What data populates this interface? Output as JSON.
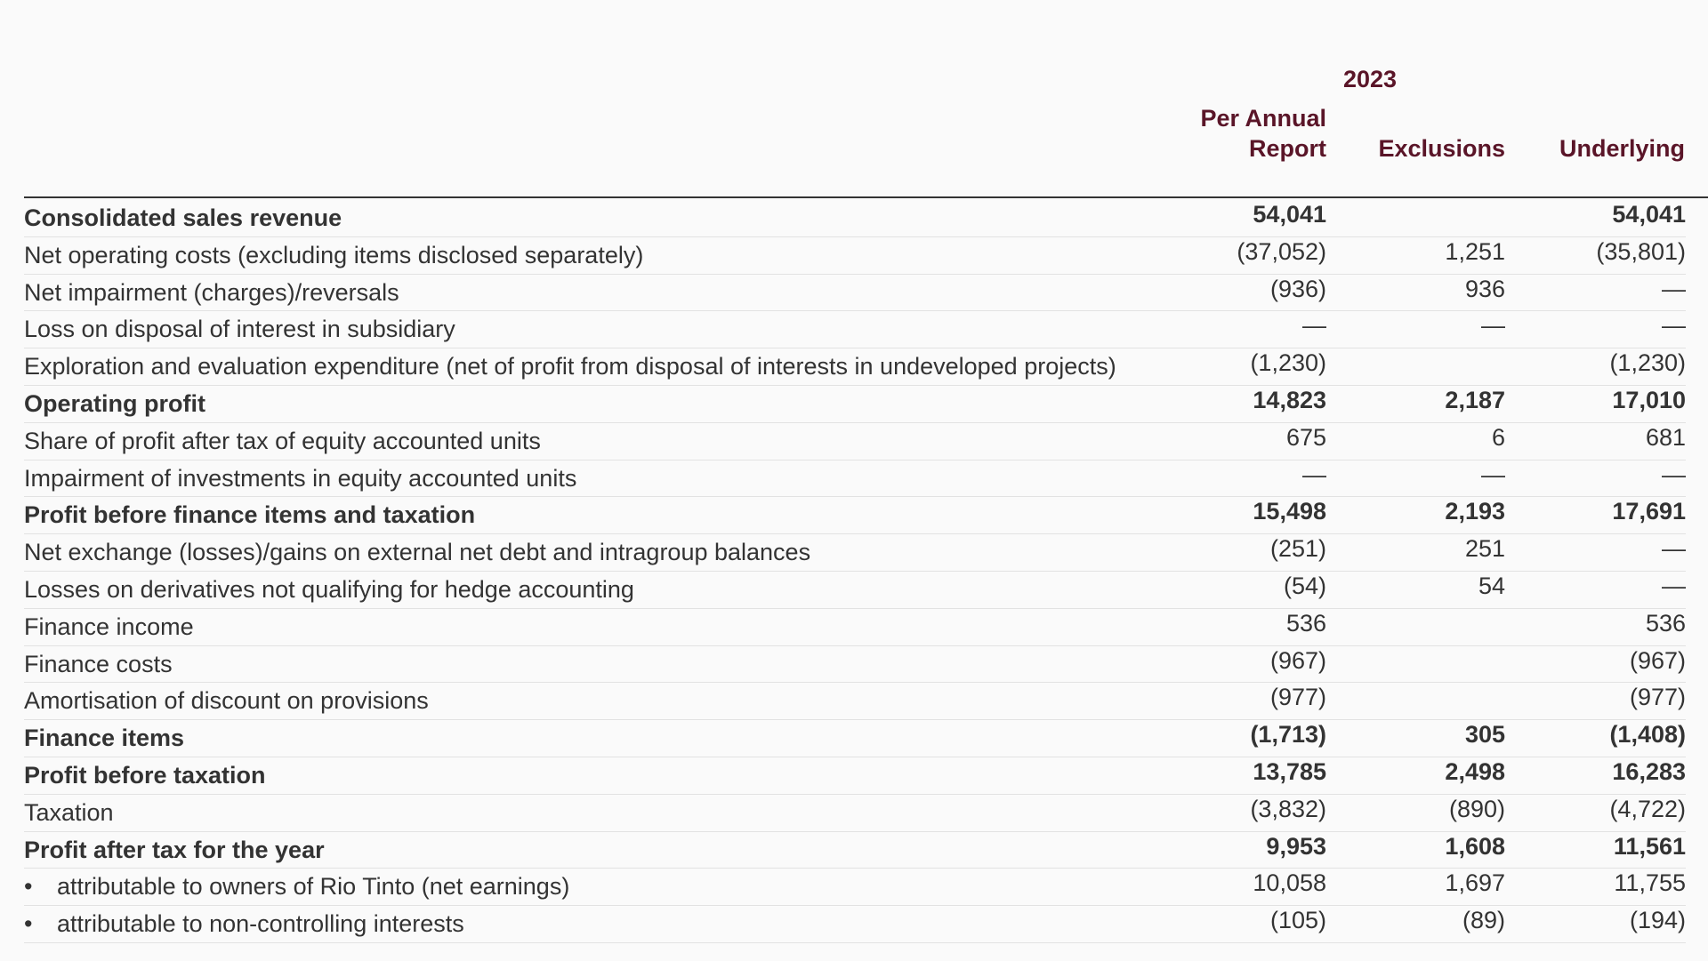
{
  "table": {
    "year": "2023",
    "columns": [
      "Per Annual Report",
      "Exclusions",
      "Underlying"
    ],
    "rows": [
      {
        "label": "Consolidated sales revenue",
        "values": [
          "54,041",
          null,
          "54,041"
        ]
      },
      {
        "label": "Net operating costs (excluding items disclosed separately)",
        "values": [
          "(37,052)",
          "1,251",
          "(35,801)"
        ]
      },
      {
        "label": "Net impairment (charges)/reversals",
        "values": [
          "(936)",
          "936",
          "—"
        ]
      },
      {
        "label": "Loss on disposal of interest in subsidiary",
        "values": [
          "—",
          "—",
          "—"
        ]
      },
      {
        "label": "Exploration and evaluation expenditure (net of profit from disposal of interests in undeveloped projects)",
        "values": [
          "(1,230)",
          null,
          "(1,230)"
        ]
      },
      {
        "label": "Operating profit",
        "values": [
          "14,823",
          "2,187",
          "17,010"
        ]
      },
      {
        "label": "Share of profit after tax of equity accounted units",
        "values": [
          "675",
          "6",
          "681"
        ]
      },
      {
        "label": "Impairment of investments in equity accounted units",
        "values": [
          "—",
          "—",
          "—"
        ]
      },
      {
        "label": "Profit before finance items and taxation",
        "values": [
          "15,498",
          "2,193",
          "17,691"
        ]
      },
      {
        "label": "Net exchange (losses)/gains on external net debt and intragroup balances",
        "values": [
          "(251)",
          "251",
          "—"
        ]
      },
      {
        "label": "Losses on derivatives not qualifying for hedge accounting",
        "values": [
          "(54)",
          "54",
          "—"
        ]
      },
      {
        "label": "Finance income",
        "values": [
          "536",
          null,
          "536"
        ]
      },
      {
        "label": "Finance costs",
        "values": [
          "(967)",
          null,
          "(967)"
        ]
      },
      {
        "label": "Amortisation of discount on provisions",
        "values": [
          "(977)",
          null,
          "(977)"
        ]
      },
      {
        "label": "Finance items",
        "values": [
          "(1,713)",
          "305",
          "(1,408)"
        ]
      },
      {
        "label": "Profit before taxation",
        "values": [
          "13,785",
          "2,498",
          "16,283"
        ]
      },
      {
        "label": "Taxation",
        "values": [
          "(3,832)",
          "(890)",
          "(4,722)"
        ]
      },
      {
        "label": "Profit after tax for the year",
        "values": [
          "9,953",
          "1,608",
          "11,561"
        ]
      },
      {
        "label": "attributable to owners of Rio Tinto (net earnings)",
        "values": [
          "10,058",
          "1,697",
          "11,755"
        ]
      },
      {
        "label": "attributable to non-controlling interests",
        "values": [
          "(105)",
          "(89)",
          "(194)"
        ]
      }
    ]
  }
}
